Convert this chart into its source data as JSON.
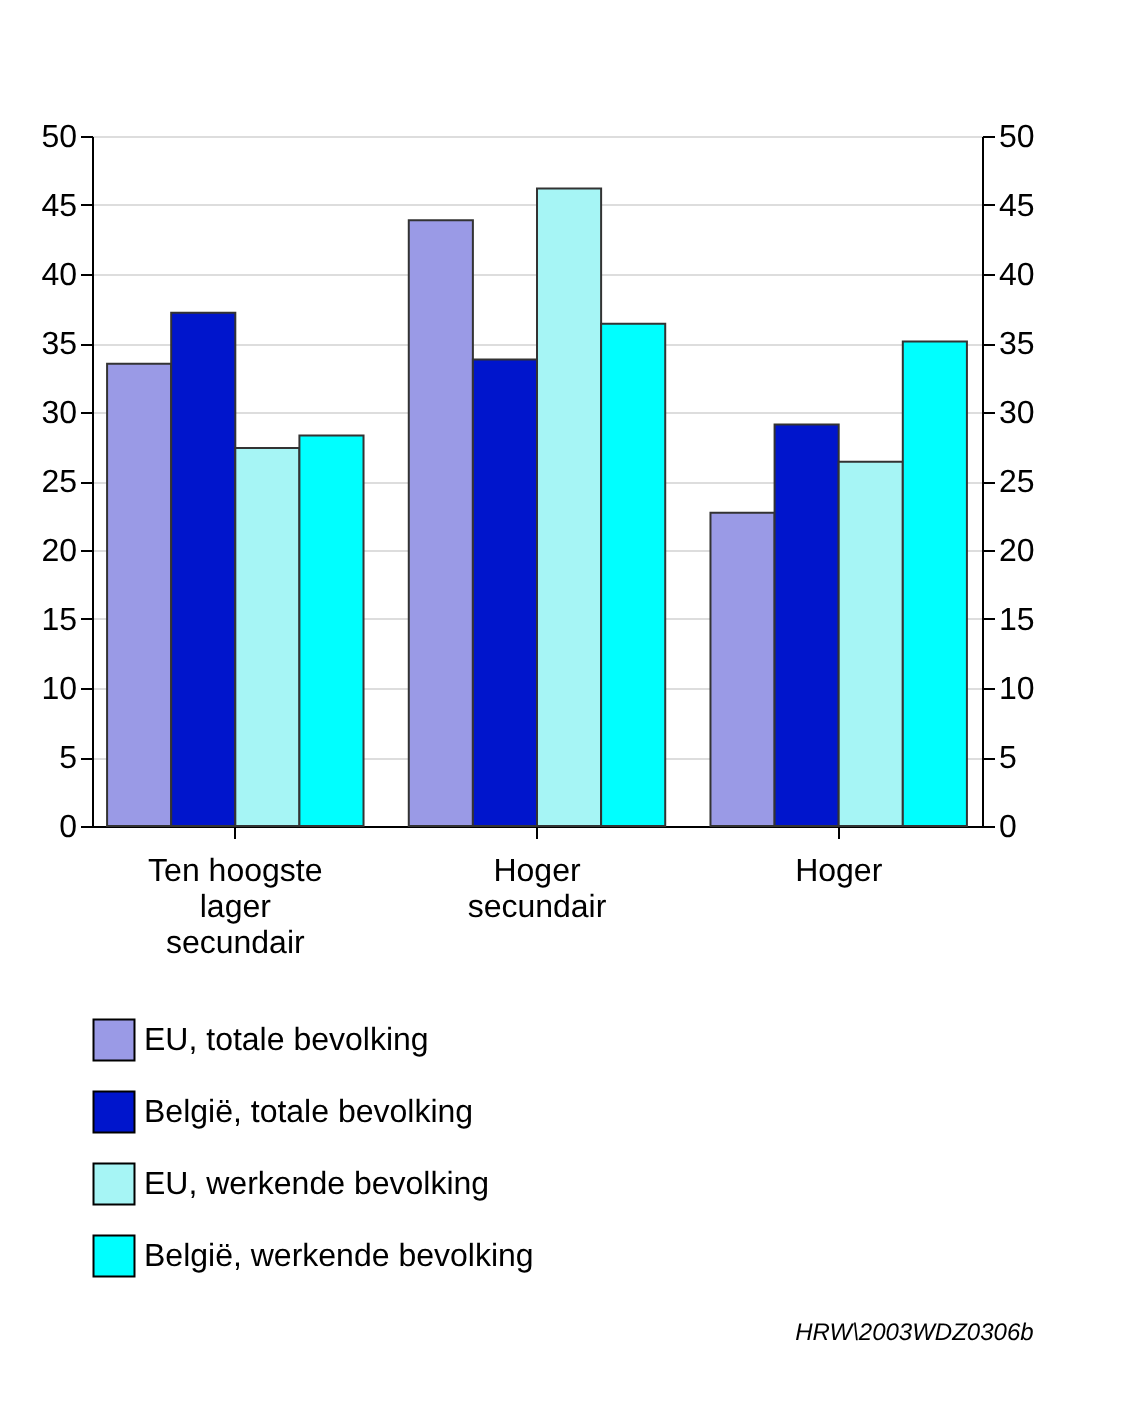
{
  "chart_data": {
    "type": "bar",
    "categories": [
      "Ten hoogste\nlager\nsecundair",
      "Hoger\nsecundair",
      "Hoger"
    ],
    "series": [
      {
        "name": "EU, totale bevolking",
        "color": "#9a9ae6",
        "values": [
          33.5,
          43.9,
          22.7
        ]
      },
      {
        "name": "België, totale bevolking",
        "color": "#0015cc",
        "values": [
          37.2,
          33.8,
          29.1
        ]
      },
      {
        "name": "EU, werkende bevolking",
        "color": "#a6f5f5",
        "values": [
          27.4,
          46.2,
          26.4
        ]
      },
      {
        "name": "België, werkende bevolking",
        "color": "#00ffff",
        "values": [
          28.3,
          36.4,
          35.1
        ]
      }
    ],
    "ylim": [
      0,
      50
    ],
    "yticks": [
      0,
      5,
      10,
      15,
      20,
      25,
      30,
      35,
      40,
      45,
      50
    ],
    "y2lim": [
      0,
      50
    ],
    "y2ticks": [
      0,
      5,
      10,
      15,
      20,
      25,
      30,
      35,
      40,
      45,
      50
    ],
    "grid": "y",
    "legend": "bottom",
    "annotations": [
      "HRW\\2003WDZ0306b"
    ]
  }
}
